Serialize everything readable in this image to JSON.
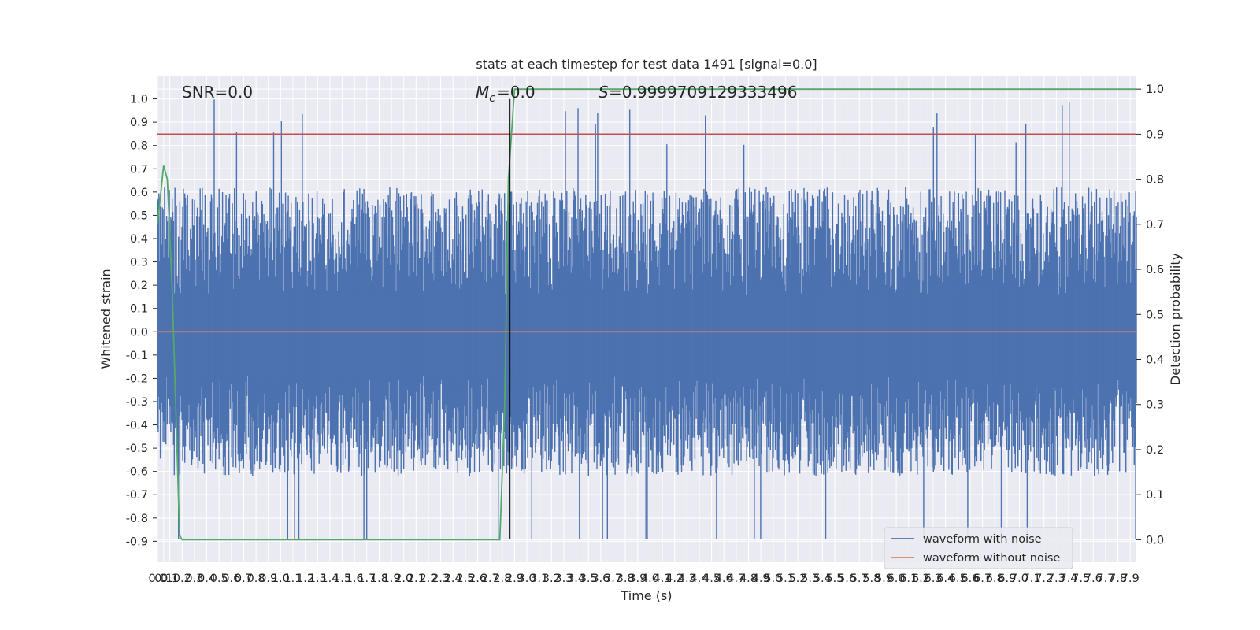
{
  "chart_data": {
    "type": "line",
    "title": "stats at each timestep for test data 1491 [signal=0.0]",
    "xlabel": "Time (s)",
    "ylabel": "Whitened strain",
    "y2label": "Detection probability",
    "xlim": [
      0.0,
      7.95
    ],
    "ylim": [
      -0.99,
      1.1
    ],
    "y2lim": [
      -0.05,
      1.03
    ],
    "x_ticks": [
      "0.0",
      "0.1",
      "0.1",
      "0.2",
      "0.3",
      "0.4",
      "0.5",
      "0.6",
      "0.7",
      "0.8",
      "0.9",
      "1.0",
      "1.1",
      "1.2",
      "1.3",
      "1.4",
      "1.5",
      "1.6",
      "1.7",
      "1.8",
      "1.9",
      "2.0",
      "2.1",
      "2.2",
      "2.3",
      "2.4",
      "2.5",
      "2.6",
      "2.7",
      "2.8",
      "2.9",
      "3.0",
      "3.1",
      "3.2",
      "3.3",
      "3.4",
      "3.5",
      "3.6",
      "3.7",
      "3.8",
      "3.9",
      "4.0",
      "4.1",
      "4.2",
      "4.3",
      "4.4",
      "4.5",
      "4.6",
      "4.7",
      "4.8",
      "4.9",
      "5.0",
      "5.1",
      "5.2",
      "5.3",
      "5.4",
      "5.5",
      "5.6",
      "5.7",
      "5.8",
      "5.9",
      "6.0",
      "6.1",
      "6.2",
      "6.3",
      "6.4",
      "6.5",
      "6.6",
      "6.7",
      "6.8",
      "6.9",
      "7.0",
      "7.1",
      "7.2",
      "7.3",
      "7.4",
      "7.5",
      "7.6",
      "7.7",
      "7.8",
      "7.9"
    ],
    "y_ticks": [
      "1.0",
      "0.9",
      "0.8",
      "0.7",
      "0.6",
      "0.5",
      "0.4",
      "0.3",
      "0.2",
      "0.1",
      "0.0",
      "-0.1",
      "-0.2",
      "-0.3",
      "-0.4",
      "-0.5",
      "-0.6",
      "-0.7",
      "-0.8",
      "-0.9"
    ],
    "y2_ticks": [
      "1.0",
      "0.9",
      "0.8",
      "0.7",
      "0.6",
      "0.5",
      "0.4",
      "0.3",
      "0.2",
      "0.1",
      "0.0"
    ],
    "annotations": {
      "snr": "SNR=0.0",
      "mc": "=0.0",
      "s": "=0.9999709129333496"
    },
    "series": [
      {
        "name": "waveform with noise",
        "color": "#4c72b0",
        "kind": "noise",
        "envelope": [
          -0.62,
          0.62
        ],
        "peak_max": 1.0,
        "peak_min": -0.89
      },
      {
        "name": "waveform without noise",
        "color": "#dd8452",
        "values_constant": 0.0
      },
      {
        "color": "#55a868",
        "axis": "right",
        "x": [
          0.0,
          0.05,
          0.08,
          0.12,
          0.18,
          0.2,
          0.25,
          1.0,
          2.0,
          2.6,
          2.78,
          2.82,
          2.85,
          2.9,
          7.95
        ],
        "y": [
          0.7,
          0.83,
          0.8,
          0.55,
          0.01,
          0.0,
          0.0,
          0.0,
          0.0,
          0.0,
          0.0,
          0.3,
          0.8,
          1.0,
          1.0
        ]
      },
      {
        "color": "#c44e52",
        "axis": "right",
        "values_constant": 0.9
      },
      {
        "color": "#000000",
        "kind": "vline",
        "x": 2.86,
        "y_from": -0.89,
        "y_to": 1.0
      }
    ],
    "legend_position": "lower right",
    "grid": true
  }
}
